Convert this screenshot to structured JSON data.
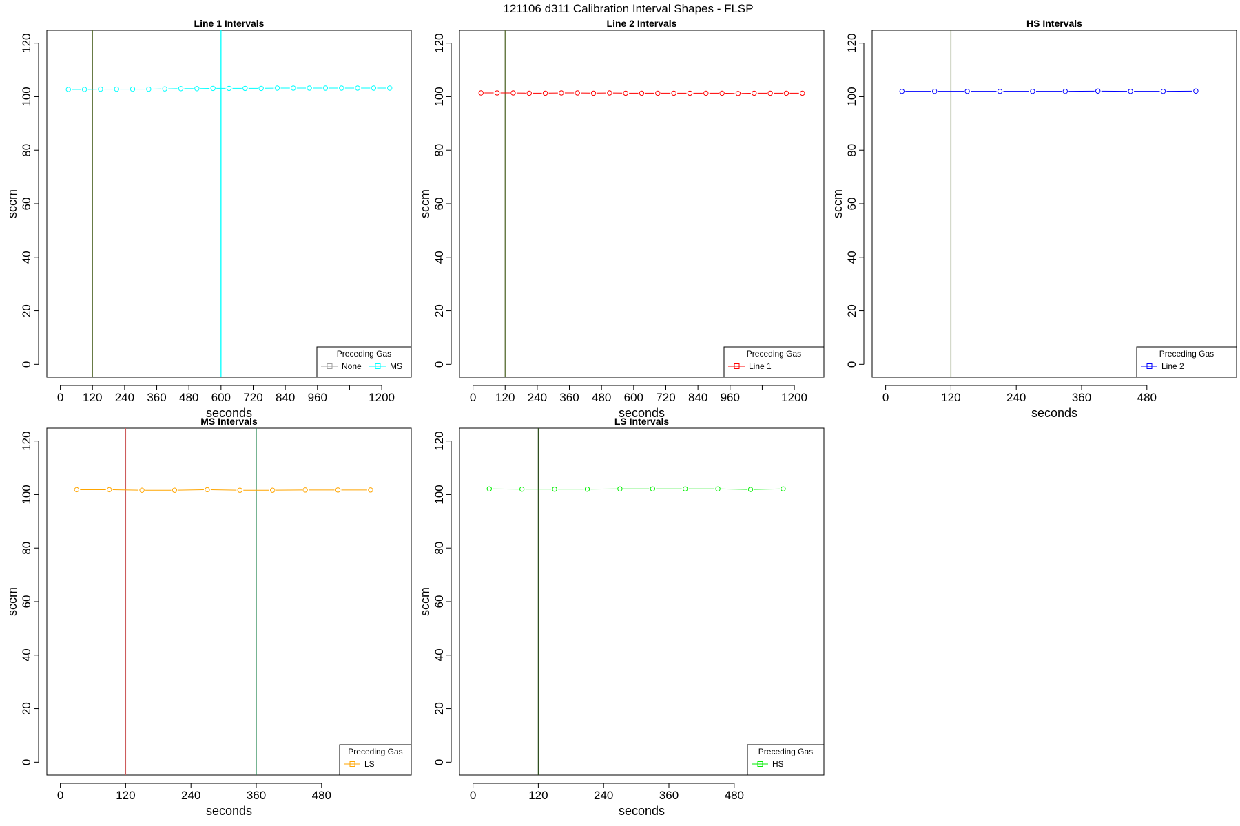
{
  "suptitle": "121106   d311   Calibration Interval Shapes - FLSP",
  "chart_data": [
    {
      "type": "line",
      "title": "Line 1 Intervals",
      "xlabel": "seconds",
      "ylabel": "sccm",
      "xlim": [
        0,
        1260
      ],
      "ylim": [
        0,
        120
      ],
      "xticks": [
        0,
        120,
        240,
        360,
        480,
        600,
        720,
        840,
        960,
        1080,
        1200
      ],
      "xtick_labels": [
        "0",
        "120",
        "240",
        "360",
        "480",
        "600",
        "720",
        "840",
        "960",
        "",
        "1200"
      ],
      "yticks": [
        0,
        20,
        40,
        60,
        80,
        100,
        120
      ],
      "vlines": [
        {
          "x": 120,
          "color": "#556b2f"
        },
        {
          "x": 600,
          "color": "#00ffff"
        }
      ],
      "series": [
        {
          "color": "#00ffff",
          "x": [
            30,
            90,
            150,
            210,
            270,
            330,
            390,
            450,
            510,
            570,
            630,
            690,
            750,
            810,
            870,
            930,
            990,
            1050,
            1110,
            1170,
            1230
          ],
          "y": [
            102.7,
            102.7,
            102.8,
            102.8,
            102.8,
            102.8,
            102.9,
            103.0,
            103.0,
            103.1,
            103.1,
            103.1,
            103.1,
            103.2,
            103.2,
            103.2,
            103.2,
            103.2,
            103.2,
            103.2,
            103.2
          ]
        }
      ],
      "legend": {
        "title": "Preceding Gas",
        "position": "bottom-right",
        "entries": [
          {
            "label": "None",
            "color": "#a0a0a0"
          },
          {
            "label": "MS",
            "color": "#00ffff"
          }
        ]
      }
    },
    {
      "type": "line",
      "title": "Line 2 Intervals",
      "xlabel": "seconds",
      "ylabel": "sccm",
      "xlim": [
        0,
        1260
      ],
      "ylim": [
        0,
        120
      ],
      "xticks": [
        0,
        120,
        240,
        360,
        480,
        600,
        720,
        840,
        960,
        1080,
        1200
      ],
      "xtick_labels": [
        "0",
        "120",
        "240",
        "360",
        "480",
        "600",
        "720",
        "840",
        "960",
        "",
        "1200"
      ],
      "yticks": [
        0,
        20,
        40,
        60,
        80,
        100,
        120
      ],
      "vlines": [
        {
          "x": 120,
          "color": "#556b2f"
        }
      ],
      "series": [
        {
          "color": "#ff0000",
          "x": [
            30,
            90,
            150,
            210,
            270,
            330,
            390,
            450,
            510,
            570,
            630,
            690,
            750,
            810,
            870,
            930,
            990,
            1050,
            1110,
            1170,
            1230
          ],
          "y": [
            101.4,
            101.4,
            101.4,
            101.3,
            101.3,
            101.4,
            101.4,
            101.3,
            101.4,
            101.3,
            101.3,
            101.3,
            101.3,
            101.3,
            101.3,
            101.3,
            101.2,
            101.3,
            101.3,
            101.3,
            101.3
          ]
        }
      ],
      "legend": {
        "title": "Preceding Gas",
        "position": "bottom-right",
        "entries": [
          {
            "label": "Line 1",
            "color": "#ff0000"
          }
        ]
      }
    },
    {
      "type": "line",
      "title": "HS Intervals",
      "xlabel": "seconds",
      "ylabel": "sccm",
      "xlim": [
        0,
        620
      ],
      "ylim": [
        0,
        120
      ],
      "xticks": [
        0,
        120,
        240,
        360,
        480
      ],
      "xtick_labels": [
        "0",
        "120",
        "240",
        "360",
        "480"
      ],
      "yticks": [
        0,
        20,
        40,
        60,
        80,
        100,
        120
      ],
      "vlines": [
        {
          "x": 120,
          "color": "#556b2f"
        }
      ],
      "series": [
        {
          "color": "#0000ff",
          "x": [
            30,
            90,
            150,
            210,
            270,
            330,
            390,
            450,
            510,
            570
          ],
          "y": [
            102.0,
            102.0,
            102.0,
            102.0,
            102.0,
            102.0,
            102.1,
            102.0,
            102.0,
            102.1
          ]
        }
      ],
      "legend": {
        "title": "Preceding Gas",
        "position": "bottom-right",
        "entries": [
          {
            "label": "Line 2",
            "color": "#0000ff"
          }
        ]
      }
    },
    {
      "type": "line",
      "title": "MS Intervals",
      "xlabel": "seconds",
      "ylabel": "sccm",
      "xlim": [
        0,
        620
      ],
      "ylim": [
        0,
        120
      ],
      "xticks": [
        0,
        120,
        240,
        360,
        480
      ],
      "xtick_labels": [
        "0",
        "120",
        "240",
        "360",
        "480"
      ],
      "yticks": [
        0,
        20,
        40,
        60,
        80,
        100,
        120
      ],
      "vlines": [
        {
          "x": 120,
          "color": "#cd5c5c"
        },
        {
          "x": 360,
          "color": "#2e8b57"
        }
      ],
      "series": [
        {
          "color": "#ffa500",
          "x": [
            30,
            90,
            150,
            210,
            270,
            330,
            390,
            450,
            510,
            570
          ],
          "y": [
            101.8,
            101.8,
            101.6,
            101.6,
            101.8,
            101.6,
            101.6,
            101.7,
            101.7,
            101.7
          ]
        }
      ],
      "legend": {
        "title": "Preceding Gas",
        "position": "bottom-right",
        "entries": [
          {
            "label": "LS",
            "color": "#ffa500"
          }
        ]
      }
    },
    {
      "type": "line",
      "title": "LS Intervals",
      "xlabel": "seconds",
      "ylabel": "sccm",
      "xlim": [
        0,
        620
      ],
      "ylim": [
        0,
        120
      ],
      "xticks": [
        0,
        120,
        240,
        360,
        480
      ],
      "xtick_labels": [
        "0",
        "120",
        "240",
        "360",
        "480"
      ],
      "yticks": [
        0,
        20,
        40,
        60,
        80,
        100,
        120
      ],
      "vlines": [
        {
          "x": 120,
          "color": "#2f4f1f"
        }
      ],
      "series": [
        {
          "color": "#00ee00",
          "x": [
            30,
            90,
            150,
            210,
            270,
            330,
            390,
            450,
            510,
            570
          ],
          "y": [
            102.1,
            102.0,
            102.0,
            102.0,
            102.1,
            102.1,
            102.1,
            102.1,
            101.9,
            102.1
          ]
        }
      ],
      "legend": {
        "title": "Preceding Gas",
        "position": "bottom-right",
        "entries": [
          {
            "label": "HS",
            "color": "#00ee00"
          }
        ]
      }
    }
  ]
}
